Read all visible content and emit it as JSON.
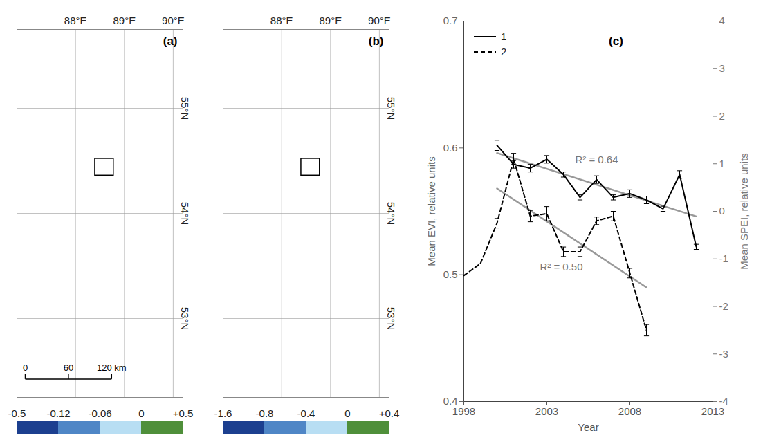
{
  "chart_data": [
    {
      "type": "map",
      "panel": "(a)",
      "xlim": [
        86.8,
        90.2
      ],
      "ylim": [
        52.25,
        55.75
      ],
      "xticks": [
        {
          "value": 88,
          "label": "88°E"
        },
        {
          "value": 89,
          "label": "89°E"
        },
        {
          "value": 90,
          "label": "90°E"
        }
      ],
      "yticks": [
        {
          "value": 53,
          "label": "53°N"
        },
        {
          "value": 54,
          "label": "54°N"
        },
        {
          "value": 55,
          "label": "55°N"
        }
      ],
      "grid": true,
      "box": {
        "x": [
          88.4,
          88.78
        ],
        "y": [
          54.36,
          54.52
        ]
      },
      "scale_bar": {
        "ticks": [
          0,
          60,
          {
            "value": 120,
            "label": "120 km"
          }
        ]
      },
      "colorbar": {
        "ticks": [
          -0.5,
          -0.12,
          -0.06,
          0,
          {
            "value": 0.5,
            "label": "+0.5"
          }
        ],
        "colors": [
          "#1c3f8f",
          "#4f86c6",
          "#b8def3",
          "#4f8f3a"
        ]
      }
    },
    {
      "type": "map",
      "panel": "(b)",
      "xlim": [
        86.8,
        90.2
      ],
      "ylim": [
        52.25,
        55.75
      ],
      "xticks": [
        {
          "value": 88,
          "label": "88°E"
        },
        {
          "value": 89,
          "label": "89°E"
        },
        {
          "value": 90,
          "label": "90°E"
        }
      ],
      "yticks": [
        {
          "value": 53,
          "label": "53°N"
        },
        {
          "value": 54,
          "label": "54°N"
        },
        {
          "value": 55,
          "label": "55°N"
        }
      ],
      "grid": true,
      "box": {
        "x": [
          88.4,
          88.78
        ],
        "y": [
          54.36,
          54.52
        ]
      },
      "colorbar": {
        "ticks": [
          -1.6,
          -0.8,
          -0.4,
          0,
          {
            "value": 0.4,
            "label": "+0.4"
          }
        ],
        "colors": [
          "#1c3f8f",
          "#4f86c6",
          "#b8def3",
          "#4f8f3a"
        ]
      }
    },
    {
      "type": "line",
      "panel": "(c)",
      "x": [
        1998,
        1999,
        2000,
        2001,
        2002,
        2003,
        2004,
        2005,
        2006,
        2007,
        2008,
        2009,
        2010,
        2011,
        2012
      ],
      "series": [
        {
          "name": "1",
          "color": "#000000",
          "line_style": "solid",
          "axis": "y",
          "values": [
            null,
            null,
            0.602,
            0.587,
            0.584,
            0.591,
            0.579,
            0.561,
            0.575,
            0.561,
            0.564,
            0.559,
            0.552,
            0.579,
            0.522
          ],
          "errors": [
            null,
            null,
            0.004,
            0.003,
            0.003,
            0.003,
            0.002,
            0.002,
            0.003,
            0.002,
            0.003,
            0.003,
            0.002,
            0.003,
            0.002
          ]
        },
        {
          "name": "2",
          "color": "#000000",
          "line_style": "dashed",
          "axis": "y2",
          "values": [
            -1.35,
            -1.1,
            -0.25,
            1.1,
            -0.1,
            -0.05,
            -0.85,
            -0.85,
            -0.2,
            -0.1,
            -1.3,
            -2.5,
            null,
            null,
            null
          ],
          "errors": [
            null,
            null,
            0.1,
            0.12,
            0.12,
            0.15,
            0.1,
            0.1,
            0.08,
            0.1,
            0.1,
            0.12,
            null,
            null,
            null
          ]
        }
      ],
      "trendlines": [
        {
          "x": [
            2000,
            2012
          ],
          "values": [
            0.596,
            0.546
          ],
          "axis": "y",
          "label": "R² = 0.64",
          "color": "#999999"
        },
        {
          "x": [
            2000,
            2009
          ],
          "values": [
            0.48,
            -1.6
          ],
          "axis": "y2",
          "label": "R² = 0.50",
          "color": "#999999"
        }
      ],
      "xlabel": "Year",
      "ylabel": "Mean EVI, relative units",
      "y2label": "Mean SPEI, relative units",
      "xlim": [
        1998,
        2013
      ],
      "xticks": [
        1998,
        2003,
        2008,
        2013
      ],
      "ylim": [
        0.4,
        0.7
      ],
      "yticks": [
        0.4,
        0.5,
        0.6,
        0.7
      ],
      "y2lim": [
        -4,
        4
      ],
      "y2ticks": [
        -4,
        -3,
        -2,
        -1,
        0,
        1,
        2,
        3,
        4
      ],
      "legend": "top-left"
    }
  ]
}
